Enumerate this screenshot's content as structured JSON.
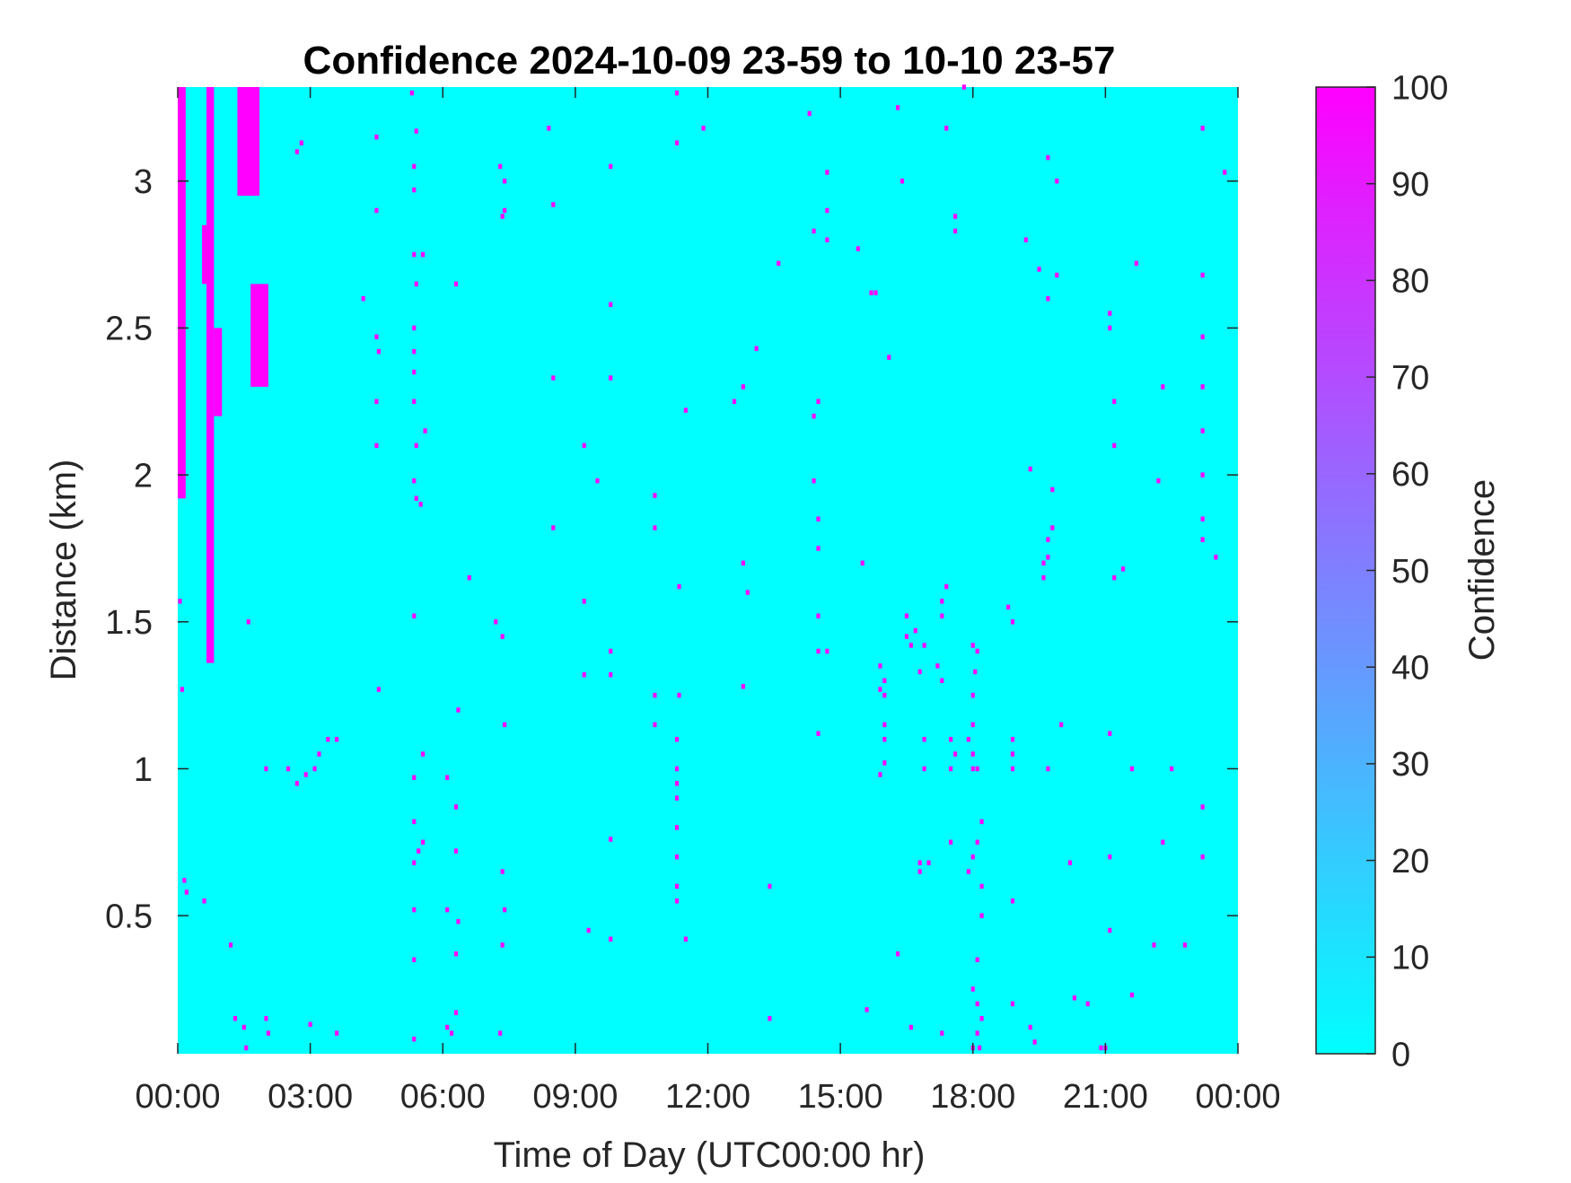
{
  "chart_data": {
    "type": "heatmap",
    "title": "Confidence 2024-10-09 23-59 to 10-10 23-57",
    "xlabel": "Time of Day (UTC00:00 hr)",
    "ylabel": "Distance (km)",
    "xlim": [
      0,
      24
    ],
    "ylim": [
      0.03,
      3.32
    ],
    "xticks": [
      0,
      3,
      6,
      9,
      12,
      15,
      18,
      21,
      24
    ],
    "xtick_labels": [
      "00:00",
      "03:00",
      "06:00",
      "09:00",
      "12:00",
      "15:00",
      "18:00",
      "21:00",
      "00:00"
    ],
    "yticks": [
      0.5,
      1,
      1.5,
      2,
      2.5,
      3
    ],
    "ytick_labels": [
      "0.5",
      "1",
      "1.5",
      "2",
      "2.5",
      "3"
    ],
    "background_value": 0,
    "colorbar": {
      "label": "Confidence",
      "range": [
        0,
        100
      ],
      "ticks": [
        0,
        10,
        20,
        30,
        40,
        50,
        60,
        70,
        80,
        90,
        100
      ],
      "tick_labels": [
        "0",
        "10",
        "20",
        "30",
        "40",
        "50",
        "60",
        "70",
        "80",
        "90",
        "100"
      ],
      "colormap": "cool",
      "color_min": "#00ffff",
      "color_max": "#ff00ff"
    },
    "high_regions": [
      {
        "t": [
          0.0,
          0.18
        ],
        "d": [
          1.92,
          3.32
        ],
        "value": 100
      },
      {
        "t": [
          0.65,
          0.82
        ],
        "d": [
          1.36,
          3.32
        ],
        "value": 100
      },
      {
        "t": [
          0.55,
          0.65
        ],
        "d": [
          2.65,
          2.85
        ],
        "value": 100
      },
      {
        "t": [
          0.82,
          1.0
        ],
        "d": [
          2.2,
          2.5
        ],
        "value": 100
      },
      {
        "t": [
          1.35,
          1.85
        ],
        "d": [
          2.95,
          3.32
        ],
        "value": 100
      },
      {
        "t": [
          1.65,
          2.05
        ],
        "d": [
          2.3,
          2.65
        ],
        "value": 100
      }
    ],
    "high_points": [
      [
        0.05,
        1.57
      ],
      [
        0.1,
        1.27
      ],
      [
        0.15,
        0.62
      ],
      [
        0.2,
        0.58
      ],
      [
        0.6,
        0.55
      ],
      [
        1.2,
        0.4
      ],
      [
        1.6,
        1.5
      ],
      [
        1.3,
        0.15
      ],
      [
        1.5,
        0.12
      ],
      [
        1.55,
        0.05
      ],
      [
        2.0,
        0.15
      ],
      [
        2.05,
        0.1
      ],
      [
        2.0,
        1.0
      ],
      [
        2.5,
        1.0
      ],
      [
        2.7,
        0.95
      ],
      [
        2.9,
        0.98
      ],
      [
        3.1,
        1.0
      ],
      [
        3.2,
        1.05
      ],
      [
        3.4,
        1.1
      ],
      [
        3.6,
        1.1
      ],
      [
        2.7,
        3.1
      ],
      [
        2.8,
        3.13
      ],
      [
        3.0,
        0.13
      ],
      [
        3.6,
        0.1
      ],
      [
        4.2,
        2.6
      ],
      [
        4.5,
        3.15
      ],
      [
        4.5,
        2.9
      ],
      [
        4.5,
        2.47
      ],
      [
        4.55,
        2.42
      ],
      [
        4.5,
        2.25
      ],
      [
        4.5,
        2.1
      ],
      [
        4.55,
        1.27
      ],
      [
        5.3,
        3.3
      ],
      [
        5.4,
        3.17
      ],
      [
        5.35,
        3.05
      ],
      [
        5.35,
        2.97
      ],
      [
        5.35,
        2.75
      ],
      [
        5.4,
        2.65
      ],
      [
        5.35,
        2.5
      ],
      [
        5.35,
        2.42
      ],
      [
        5.35,
        2.35
      ],
      [
        5.35,
        2.25
      ],
      [
        5.4,
        2.1
      ],
      [
        5.35,
        1.98
      ],
      [
        5.4,
        1.92
      ],
      [
        5.5,
        1.9
      ],
      [
        5.6,
        2.15
      ],
      [
        5.55,
        2.75
      ],
      [
        5.35,
        1.52
      ],
      [
        5.35,
        0.97
      ],
      [
        5.35,
        0.82
      ],
      [
        5.35,
        0.68
      ],
      [
        5.45,
        0.72
      ],
      [
        5.55,
        0.75
      ],
      [
        5.35,
        0.52
      ],
      [
        5.35,
        0.35
      ],
      [
        5.35,
        0.08
      ],
      [
        5.55,
        1.05
      ],
      [
        6.1,
        0.97
      ],
      [
        6.1,
        0.52
      ],
      [
        6.3,
        0.87
      ],
      [
        6.3,
        0.72
      ],
      [
        6.35,
        0.48
      ],
      [
        6.3,
        0.37
      ],
      [
        6.3,
        0.17
      ],
      [
        6.2,
        0.1
      ],
      [
        6.1,
        0.12
      ],
      [
        6.3,
        2.65
      ],
      [
        6.35,
        1.2
      ],
      [
        6.6,
        1.65
      ],
      [
        7.3,
        3.05
      ],
      [
        7.4,
        3.0
      ],
      [
        7.35,
        2.88
      ],
      [
        7.4,
        2.9
      ],
      [
        7.2,
        1.5
      ],
      [
        7.35,
        1.45
      ],
      [
        7.4,
        1.15
      ],
      [
        7.35,
        0.65
      ],
      [
        7.4,
        0.52
      ],
      [
        7.35,
        0.4
      ],
      [
        7.3,
        0.1
      ],
      [
        8.4,
        3.18
      ],
      [
        8.5,
        2.92
      ],
      [
        8.5,
        2.33
      ],
      [
        8.5,
        1.82
      ],
      [
        9.2,
        2.1
      ],
      [
        9.2,
        1.57
      ],
      [
        9.2,
        1.32
      ],
      [
        9.3,
        0.45
      ],
      [
        9.5,
        1.98
      ],
      [
        9.8,
        3.05
      ],
      [
        9.8,
        2.58
      ],
      [
        9.8,
        2.33
      ],
      [
        9.8,
        1.4
      ],
      [
        9.8,
        1.32
      ],
      [
        9.8,
        0.76
      ],
      [
        9.8,
        0.42
      ],
      [
        10.8,
        1.93
      ],
      [
        10.8,
        1.82
      ],
      [
        10.8,
        1.25
      ],
      [
        10.8,
        1.15
      ],
      [
        11.3,
        3.3
      ],
      [
        11.3,
        3.13
      ],
      [
        11.35,
        1.62
      ],
      [
        11.35,
        1.25
      ],
      [
        11.3,
        1.1
      ],
      [
        11.3,
        1.0
      ],
      [
        11.3,
        0.95
      ],
      [
        11.3,
        0.9
      ],
      [
        11.3,
        0.8
      ],
      [
        11.3,
        0.7
      ],
      [
        11.3,
        0.6
      ],
      [
        11.3,
        0.55
      ],
      [
        11.5,
        0.42
      ],
      [
        11.5,
        2.22
      ],
      [
        11.9,
        3.18
      ],
      [
        12.6,
        2.25
      ],
      [
        12.8,
        2.3
      ],
      [
        12.8,
        1.7
      ],
      [
        12.9,
        1.6
      ],
      [
        12.8,
        1.28
      ],
      [
        13.1,
        2.43
      ],
      [
        13.4,
        0.6
      ],
      [
        13.4,
        0.15
      ],
      [
        13.6,
        2.72
      ],
      [
        14.3,
        3.23
      ],
      [
        14.4,
        2.83
      ],
      [
        14.5,
        2.25
      ],
      [
        14.4,
        2.2
      ],
      [
        14.4,
        1.98
      ],
      [
        14.5,
        1.85
      ],
      [
        14.5,
        1.75
      ],
      [
        14.5,
        1.52
      ],
      [
        14.5,
        1.4
      ],
      [
        14.7,
        1.4
      ],
      [
        14.5,
        1.12
      ],
      [
        14.7,
        3.03
      ],
      [
        14.7,
        2.9
      ],
      [
        14.7,
        2.8
      ],
      [
        15.4,
        2.77
      ],
      [
        15.5,
        1.7
      ],
      [
        15.7,
        2.62
      ],
      [
        15.8,
        2.62
      ],
      [
        15.9,
        1.35
      ],
      [
        15.9,
        1.27
      ],
      [
        16.0,
        1.3
      ],
      [
        16.0,
        1.25
      ],
      [
        16.0,
        1.15
      ],
      [
        16.0,
        1.1
      ],
      [
        15.9,
        0.98
      ],
      [
        16.0,
        1.02
      ],
      [
        15.6,
        0.18
      ],
      [
        16.1,
        2.4
      ],
      [
        16.3,
        3.25
      ],
      [
        16.4,
        3.0
      ],
      [
        16.3,
        0.37
      ],
      [
        16.5,
        1.52
      ],
      [
        16.5,
        1.45
      ],
      [
        16.6,
        1.42
      ],
      [
        16.7,
        1.47
      ],
      [
        16.9,
        1.42
      ],
      [
        16.8,
        1.33
      ],
      [
        16.8,
        0.68
      ],
      [
        16.6,
        0.12
      ],
      [
        16.8,
        0.65
      ],
      [
        17.0,
        0.68
      ],
      [
        16.9,
        1.1
      ],
      [
        16.9,
        1.0
      ],
      [
        17.2,
        1.35
      ],
      [
        17.3,
        1.52
      ],
      [
        17.3,
        1.57
      ],
      [
        17.3,
        1.3
      ],
      [
        17.4,
        3.18
      ],
      [
        17.4,
        1.62
      ],
      [
        17.5,
        1.1
      ],
      [
        17.5,
        1.0
      ],
      [
        17.6,
        1.05
      ],
      [
        17.5,
        0.75
      ],
      [
        17.3,
        0.1
      ],
      [
        17.6,
        2.88
      ],
      [
        17.6,
        2.83
      ],
      [
        17.8,
        3.32
      ],
      [
        17.9,
        1.1
      ],
      [
        18.0,
        1.0
      ],
      [
        18.0,
        1.42
      ],
      [
        18.1,
        1.4
      ],
      [
        18.05,
        1.33
      ],
      [
        18.0,
        1.25
      ],
      [
        18.0,
        1.15
      ],
      [
        18.1,
        1.0
      ],
      [
        18.2,
        0.82
      ],
      [
        18.1,
        0.75
      ],
      [
        18.0,
        0.7
      ],
      [
        18.2,
        0.6
      ],
      [
        18.2,
        0.5
      ],
      [
        18.1,
        0.35
      ],
      [
        18.0,
        0.25
      ],
      [
        18.1,
        0.2
      ],
      [
        18.2,
        0.15
      ],
      [
        18.1,
        0.1
      ],
      [
        18.15,
        0.05
      ],
      [
        18.0,
        0.05
      ],
      [
        17.9,
        0.65
      ],
      [
        18.0,
        1.05
      ],
      [
        18.9,
        1.1
      ],
      [
        18.9,
        1.05
      ],
      [
        18.9,
        1.0
      ],
      [
        18.8,
        1.55
      ],
      [
        18.9,
        1.5
      ],
      [
        18.9,
        0.55
      ],
      [
        18.9,
        0.2
      ],
      [
        19.2,
        2.8
      ],
      [
        19.3,
        2.02
      ],
      [
        19.3,
        0.12
      ],
      [
        19.4,
        0.07
      ],
      [
        19.5,
        2.7
      ],
      [
        19.7,
        2.6
      ],
      [
        19.7,
        3.08
      ],
      [
        19.8,
        1.95
      ],
      [
        19.8,
        1.82
      ],
      [
        19.7,
        1.78
      ],
      [
        19.6,
        1.7
      ],
      [
        19.6,
        1.65
      ],
      [
        19.7,
        1.72
      ],
      [
        19.7,
        1.0
      ],
      [
        19.9,
        2.68
      ],
      [
        19.9,
        3.0
      ],
      [
        20.0,
        1.15
      ],
      [
        20.2,
        0.68
      ],
      [
        20.3,
        0.22
      ],
      [
        20.6,
        0.2
      ],
      [
        21.0,
        0.05
      ],
      [
        20.9,
        0.05
      ],
      [
        21.1,
        2.5
      ],
      [
        21.1,
        2.55
      ],
      [
        21.2,
        2.25
      ],
      [
        21.2,
        2.1
      ],
      [
        21.2,
        1.65
      ],
      [
        21.4,
        1.68
      ],
      [
        21.1,
        1.12
      ],
      [
        21.1,
        0.7
      ],
      [
        21.1,
        0.45
      ],
      [
        21.6,
        1.0
      ],
      [
        21.6,
        0.23
      ],
      [
        21.7,
        2.72
      ],
      [
        22.1,
        0.4
      ],
      [
        22.2,
        1.98
      ],
      [
        22.3,
        2.3
      ],
      [
        22.5,
        1.0
      ],
      [
        22.3,
        0.75
      ],
      [
        22.8,
        0.4
      ],
      [
        23.2,
        3.18
      ],
      [
        23.2,
        2.68
      ],
      [
        23.2,
        2.47
      ],
      [
        23.2,
        2.3
      ],
      [
        23.2,
        2.15
      ],
      [
        23.2,
        2.0
      ],
      [
        23.2,
        1.85
      ],
      [
        23.2,
        1.78
      ],
      [
        23.2,
        0.87
      ],
      [
        23.2,
        0.7
      ],
      [
        23.5,
        1.72
      ],
      [
        23.7,
        3.03
      ]
    ]
  }
}
